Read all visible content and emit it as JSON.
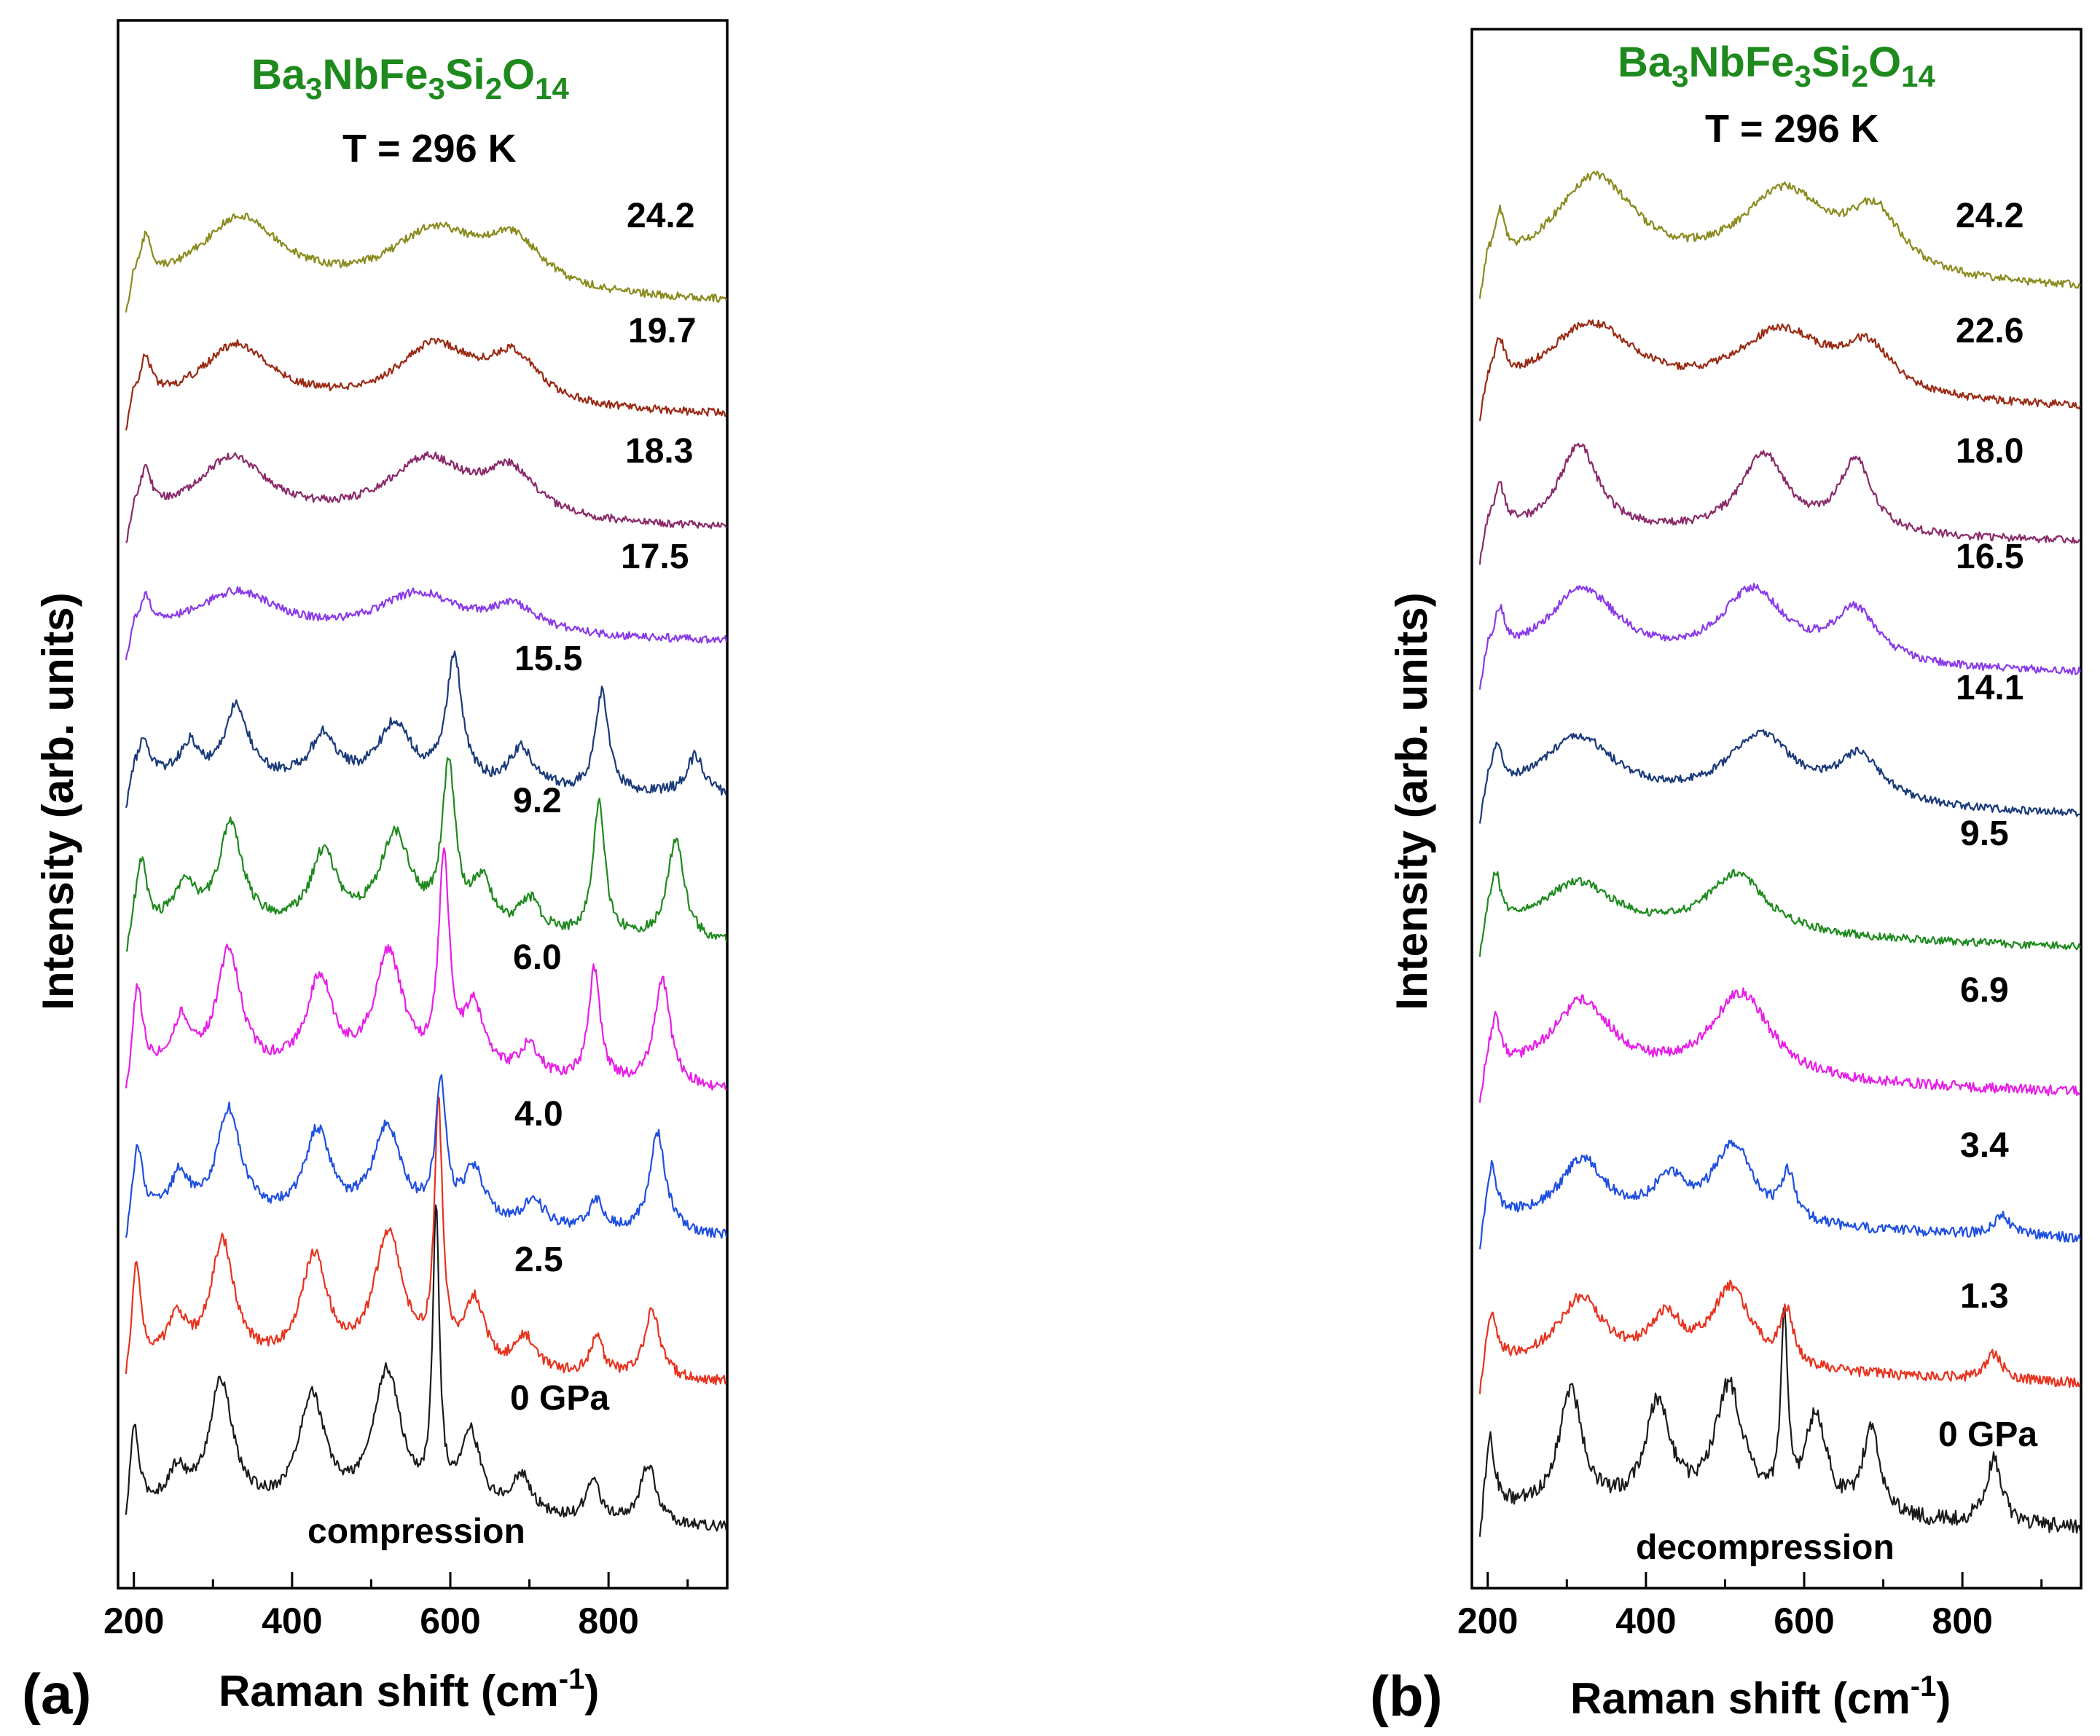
{
  "colors": {
    "formula": "#1e8a1e",
    "series": [
      "#1a1a1a",
      "#e8321e",
      "#1f4fe0",
      "#e81ee8",
      "#1e8a1e",
      "#1a3a7a",
      "#8a3ae8",
      "#8a2a6a",
      "#9a2a14",
      "#8a8a1e"
    ]
  },
  "chart_data": [
    {
      "type": "line",
      "panel": "(a)",
      "title": "Ba3NbFe3Si2O14",
      "formula": {
        "parts": [
          "Ba",
          "3",
          "NbFe",
          "3",
          "Si",
          "2",
          "O",
          "14"
        ]
      },
      "temperature": "T = 296 K",
      "mode": "compression",
      "xlabel": "Raman shift (cm",
      "xlabel_sup": "-1",
      "xlabel_end": ")",
      "ylabel": "Intensity (arb. units)",
      "xlim": [
        180,
        950
      ],
      "ylim": [
        -0.6,
        11.2
      ],
      "xticks": [
        200,
        400,
        600,
        800
      ],
      "xticklabels": [
        "200",
        "400",
        "600",
        "800"
      ],
      "series": [
        {
          "name": "0 GPa",
          "label": "0 GPa",
          "offset": 0.0,
          "baseline": 0.0,
          "color": "#1a1a1a",
          "peaks": [
            [
              200,
              0.6,
              7
            ],
            [
              255,
              0.25,
              14
            ],
            [
              310,
              0.95,
              18
            ],
            [
              425,
              0.85,
              20
            ],
            [
              520,
              1.05,
              22
            ],
            [
              582,
              2.2,
              5
            ],
            [
              625,
              0.6,
              16
            ],
            [
              690,
              0.3,
              16
            ],
            [
              780,
              0.32,
              10
            ],
            [
              850,
              0.45,
              12
            ]
          ],
          "slope": -0.0002,
          "noise": 0.04
        },
        {
          "name": "2.5",
          "label": "2.5",
          "offset": 1.1,
          "baseline": 0.0,
          "color": "#e8321e",
          "peaks": [
            [
              203,
              0.7,
              7
            ],
            [
              255,
              0.3,
              14
            ],
            [
              312,
              0.9,
              18
            ],
            [
              428,
              0.8,
              20
            ],
            [
              522,
              1.0,
              22
            ],
            [
              585,
              1.9,
              6
            ],
            [
              630,
              0.5,
              16
            ],
            [
              695,
              0.25,
              16
            ],
            [
              785,
              0.28,
              10
            ],
            [
              855,
              0.5,
              12
            ]
          ],
          "slope": -0.0002,
          "noise": 0.04
        },
        {
          "name": "4.0",
          "label": "4.0",
          "offset": 2.2,
          "baseline": 0.0,
          "color": "#1f4fe0",
          "peaks": [
            [
              205,
              0.5,
              7
            ],
            [
              258,
              0.3,
              14
            ],
            [
              320,
              0.8,
              18
            ],
            [
              432,
              0.65,
              20
            ],
            [
              520,
              0.7,
              22
            ],
            [
              588,
              1.0,
              8
            ],
            [
              630,
              0.4,
              16
            ],
            [
              705,
              0.2,
              16
            ],
            [
              785,
              0.22,
              10
            ],
            [
              862,
              0.75,
              12
            ]
          ],
          "slope": -0.0002,
          "noise": 0.04
        },
        {
          "name": "6.0",
          "label": "6.0",
          "offset": 3.3,
          "baseline": 0.0,
          "color": "#e81ee8",
          "peaks": [
            [
              205,
              0.6,
              7
            ],
            [
              260,
              0.35,
              14
            ],
            [
              320,
              0.9,
              18
            ],
            [
              435,
              0.7,
              20
            ],
            [
              522,
              0.9,
              22
            ],
            [
              592,
              1.6,
              8
            ],
            [
              630,
              0.5,
              16
            ],
            [
              700,
              0.25,
              16
            ],
            [
              782,
              0.85,
              9
            ],
            [
              868,
              0.8,
              12
            ]
          ],
          "slope": -0.0002,
          "noise": 0.04
        },
        {
          "name": "9.2",
          "label": "9.2",
          "offset": 4.4,
          "baseline": 0.0,
          "color": "#1e8a1e",
          "peaks": [
            [
              210,
              0.45,
              7
            ],
            [
              265,
              0.3,
              14
            ],
            [
              322,
              0.75,
              18
            ],
            [
              440,
              0.55,
              20
            ],
            [
              530,
              0.7,
              24
            ],
            [
              598,
              1.2,
              10
            ],
            [
              640,
              0.35,
              16
            ],
            [
              700,
              0.25,
              16
            ],
            [
              788,
              1.0,
              9
            ],
            [
              885,
              0.75,
              13
            ]
          ],
          "slope": -0.0002,
          "noise": 0.04
        },
        {
          "name": "15.5",
          "label": "15.5",
          "offset": 5.5,
          "baseline": 0.0,
          "color": "#1a3a7a",
          "peaks": [
            [
              212,
              0.3,
              8
            ],
            [
              270,
              0.25,
              14
            ],
            [
              330,
              0.55,
              18
            ],
            [
              440,
              0.35,
              20
            ],
            [
              530,
              0.45,
              26
            ],
            [
              605,
              0.95,
              12
            ],
            [
              690,
              0.3,
              18
            ],
            [
              792,
              0.75,
              10
            ],
            [
              910,
              0.3,
              14
            ]
          ],
          "slope": -0.0002,
          "noise": 0.04
        },
        {
          "name": "17.5",
          "label": "17.5",
          "offset": 6.6,
          "baseline": 0.0,
          "color": "#8a3ae8",
          "peaks": [
            [
              215,
              0.2,
              8
            ],
            [
              330,
              0.3,
              60
            ],
            [
              560,
              0.3,
              60
            ],
            [
              680,
              0.2,
              40
            ]
          ],
          "slope": -0.0001,
          "noise": 0.03
        },
        {
          "name": "18.3",
          "label": "18.3",
          "offset": 7.45,
          "baseline": 0.0,
          "color": "#8a2a6a",
          "peaks": [
            [
              215,
              0.3,
              8
            ],
            [
              325,
              0.45,
              55
            ],
            [
              570,
              0.45,
              60
            ],
            [
              675,
              0.35,
              40
            ]
          ],
          "slope": -0.0001,
          "noise": 0.03
        },
        {
          "name": "19.7",
          "label": "19.7",
          "offset": 8.3,
          "baseline": 0.0,
          "color": "#9a2a14",
          "peaks": [
            [
              215,
              0.3,
              8
            ],
            [
              330,
              0.45,
              55
            ],
            [
              580,
              0.45,
              60
            ],
            [
              680,
              0.35,
              40
            ]
          ],
          "slope": -0.0001,
          "noise": 0.03
        },
        {
          "name": "24.2",
          "label": "24.2",
          "offset": 9.15,
          "baseline": 0.0,
          "color": "#8a8a1e",
          "peaks": [
            [
              215,
              0.3,
              8
            ],
            [
              335,
              0.55,
              65
            ],
            [
              580,
              0.45,
              70
            ],
            [
              680,
              0.35,
              45
            ]
          ],
          "slope": -0.0001,
          "noise": 0.03
        }
      ]
    },
    {
      "type": "line",
      "panel": "(b)",
      "title": "Ba3NbFe3Si2O14",
      "formula": {
        "parts": [
          "Ba",
          "3",
          "NbFe",
          "3",
          "Si",
          "2",
          "O",
          "14"
        ]
      },
      "temperature": "T = 296 K",
      "mode": "decompression",
      "xlabel": "Raman shift (cm",
      "xlabel_sup": "-1",
      "xlabel_end": ")",
      "ylabel": "Intensity (arb. units)",
      "xlim": [
        180,
        950
      ],
      "ylim": [
        -0.6,
        11.2
      ],
      "xticks": [
        200,
        400,
        600,
        800
      ],
      "xticklabels": [
        "200",
        "400",
        "600",
        "800"
      ],
      "series": [
        {
          "name": "0 GPa",
          "label": "0 GPa",
          "offset": 0.0,
          "baseline": 0.0,
          "color": "#1a1a1a",
          "peaks": [
            [
              203,
              0.5,
              7
            ],
            [
              305,
              0.9,
              18
            ],
            [
              415,
              0.8,
              20
            ],
            [
              505,
              0.95,
              22
            ],
            [
              575,
              1.4,
              5
            ],
            [
              615,
              0.75,
              16
            ],
            [
              685,
              0.65,
              14
            ],
            [
              840,
              0.5,
              12
            ]
          ],
          "slope": -0.0002,
          "noise": 0.06
        },
        {
          "name": "1.3",
          "label": "1.3",
          "offset": 1.1,
          "baseline": 0.0,
          "color": "#e8321e",
          "peaks": [
            [
              205,
              0.35,
              7
            ],
            [
              318,
              0.5,
              35
            ],
            [
              425,
              0.35,
              25
            ],
            [
              508,
              0.6,
              30
            ],
            [
              578,
              0.4,
              10
            ],
            [
              840,
              0.2,
              12
            ]
          ],
          "slope": -0.0002,
          "noise": 0.04
        },
        {
          "name": "3.4",
          "label": "3.4",
          "offset": 2.2,
          "baseline": 0.0,
          "color": "#1f4fe0",
          "peaks": [
            [
              205,
              0.35,
              7
            ],
            [
              320,
              0.45,
              35
            ],
            [
              430,
              0.3,
              25
            ],
            [
              510,
              0.6,
              30
            ],
            [
              580,
              0.35,
              10
            ],
            [
              850,
              0.15,
              12
            ]
          ],
          "slope": -0.0002,
          "noise": 0.04
        },
        {
          "name": "6.9",
          "label": "6.9",
          "offset": 3.3,
          "baseline": 0.0,
          "color": "#e81ee8",
          "peaks": [
            [
              210,
              0.35,
              7
            ],
            [
              320,
              0.55,
              45
            ],
            [
              520,
              0.65,
              45
            ]
          ],
          "slope": -0.0002,
          "noise": 0.04
        },
        {
          "name": "9.5",
          "label": "9.5",
          "offset": 4.4,
          "baseline": 0.0,
          "color": "#1e8a1e",
          "peaks": [
            [
              210,
              0.35,
              7
            ],
            [
              315,
              0.35,
              55
            ],
            [
              515,
              0.45,
              45
            ]
          ],
          "slope": -0.0002,
          "noise": 0.03
        },
        {
          "name": "14.1",
          "label": "14.1",
          "offset": 5.4,
          "baseline": 0.0,
          "color": "#1a3a7a",
          "peaks": [
            [
              212,
              0.3,
              7
            ],
            [
              315,
              0.45,
              55
            ],
            [
              545,
              0.5,
              50
            ],
            [
              670,
              0.35,
              35
            ]
          ],
          "slope": -0.0002,
          "noise": 0.03
        },
        {
          "name": "16.5",
          "label": "16.5",
          "offset": 6.4,
          "baseline": 0.0,
          "color": "#8a3ae8",
          "peaks": [
            [
              215,
              0.3,
              8
            ],
            [
              320,
              0.55,
              55
            ],
            [
              535,
              0.55,
              50
            ],
            [
              665,
              0.4,
              35
            ]
          ],
          "slope": -0.0001,
          "noise": 0.03
        },
        {
          "name": "18.0",
          "label": "18.0",
          "offset": 7.4,
          "baseline": 0.0,
          "color": "#8a2a6a",
          "peaks": [
            [
              215,
              0.3,
              8
            ],
            [
              315,
              0.65,
              30
            ],
            [
              548,
              0.6,
              35
            ],
            [
              665,
              0.55,
              25
            ]
          ],
          "slope": -0.0001,
          "noise": 0.03
        },
        {
          "name": "22.6",
          "label": "22.6",
          "offset": 8.4,
          "baseline": 0.0,
          "color": "#9a2a14",
          "peaks": [
            [
              215,
              0.3,
              8
            ],
            [
              330,
              0.55,
              70
            ],
            [
              570,
              0.5,
              70
            ],
            [
              680,
              0.35,
              40
            ]
          ],
          "slope": -0.0001,
          "noise": 0.03
        },
        {
          "name": "24.2",
          "label": "24.2",
          "offset": 9.3,
          "baseline": 0.0,
          "color": "#8a8a1e",
          "peaks": [
            [
              215,
              0.35,
              8
            ],
            [
              335,
              0.75,
              65
            ],
            [
              575,
              0.65,
              70
            ],
            [
              690,
              0.45,
              40
            ]
          ],
          "slope": -0.0001,
          "noise": 0.03
        }
      ]
    }
  ]
}
